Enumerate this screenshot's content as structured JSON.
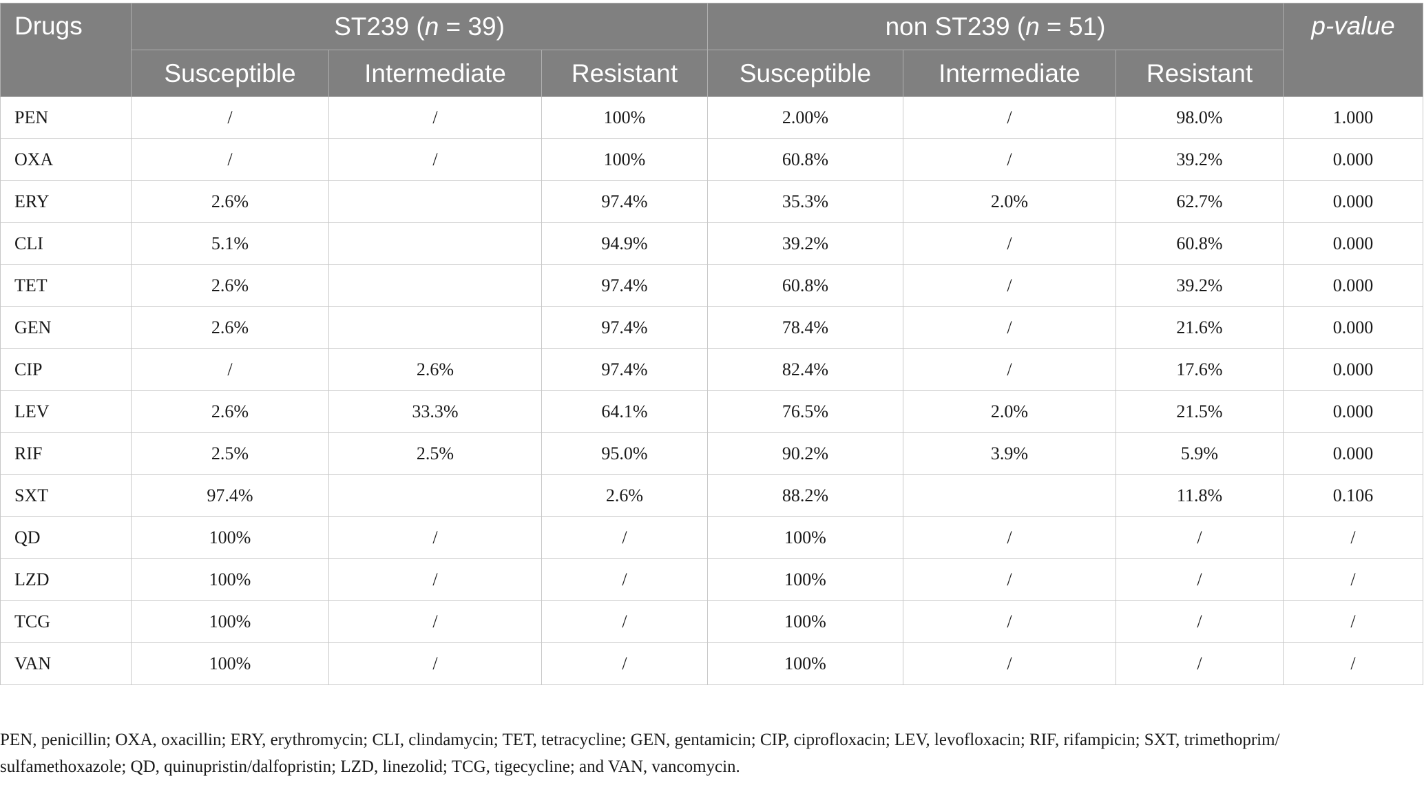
{
  "table": {
    "header": {
      "drugs": "Drugs",
      "group1": {
        "pre": "ST239 (",
        "n": "n",
        "post": " = 39)"
      },
      "group2": {
        "pre": "non ST239 (",
        "n": "n",
        "post": " = 51)"
      },
      "pvalue": "p-value",
      "sub": [
        "Susceptible",
        "Intermediate",
        "Resistant",
        "Susceptible",
        "Intermediate",
        "Resistant"
      ]
    },
    "rows": [
      [
        "PEN",
        "/",
        "/",
        "100%",
        "2.00%",
        "/",
        "98.0%",
        "1.000"
      ],
      [
        "OXA",
        "/",
        "/",
        "100%",
        "60.8%",
        "/",
        "39.2%",
        "0.000"
      ],
      [
        "ERY",
        "2.6%",
        "",
        "97.4%",
        "35.3%",
        "2.0%",
        "62.7%",
        "0.000"
      ],
      [
        "CLI",
        "5.1%",
        "",
        "94.9%",
        "39.2%",
        "/",
        "60.8%",
        "0.000"
      ],
      [
        "TET",
        "2.6%",
        "",
        "97.4%",
        "60.8%",
        "/",
        "39.2%",
        "0.000"
      ],
      [
        "GEN",
        "2.6%",
        "",
        "97.4%",
        "78.4%",
        "/",
        "21.6%",
        "0.000"
      ],
      [
        "CIP",
        "/",
        "2.6%",
        "97.4%",
        "82.4%",
        "/",
        "17.6%",
        "0.000"
      ],
      [
        "LEV",
        "2.6%",
        "33.3%",
        "64.1%",
        "76.5%",
        "2.0%",
        "21.5%",
        "0.000"
      ],
      [
        "RIF",
        "2.5%",
        "2.5%",
        "95.0%",
        "90.2%",
        "3.9%",
        "5.9%",
        "0.000"
      ],
      [
        "SXT",
        "97.4%",
        "",
        "2.6%",
        "88.2%",
        "",
        "11.8%",
        "0.106"
      ],
      [
        "QD",
        "100%",
        "/",
        "/",
        "100%",
        "/",
        "/",
        "/"
      ],
      [
        "LZD",
        "100%",
        "/",
        "/",
        "100%",
        "/",
        "/",
        "/"
      ],
      [
        "TCG",
        "100%",
        "/",
        "/",
        "100%",
        "/",
        "/",
        "/"
      ],
      [
        "VAN",
        "100%",
        "/",
        "/",
        "100%",
        "/",
        "/",
        "/"
      ]
    ]
  },
  "footnote": {
    "line1": "PEN, penicillin; OXA, oxacillin; ERY, erythromycin; CLI, clindamycin; TET, tetracycline; GEN, gentamicin; CIP, ciprofloxacin; LEV, levofloxacin; RIF, rifampicin; SXT, trimethoprim/",
    "line2": "sulfamethoxazole; QD, quinupristin/dalfopristin; LZD, linezolid; TCG, tigecycline; and VAN, vancomycin."
  }
}
